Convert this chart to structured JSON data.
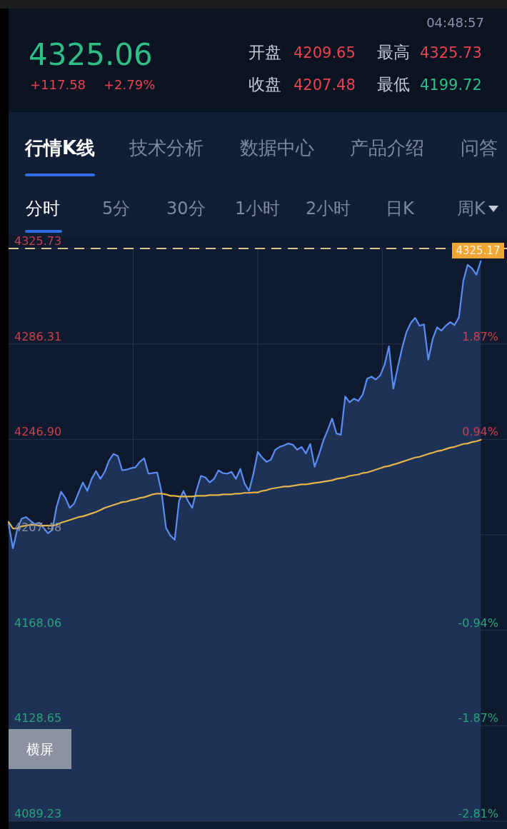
{
  "chart_data": {
    "type": "area",
    "title": "4325.06",
    "annotations": [
      "04:48:57",
      "+117.58",
      "+2.79%",
      "开盘",
      "4209.65",
      "最高",
      "4325.73",
      "收盘",
      "4207.48",
      "最低",
      "4199.72",
      "行情K线",
      "技术分析",
      "数据中心",
      "产品介绍",
      "问答",
      "分时",
      "5分",
      "30分",
      "1小时",
      "2小时",
      "日K",
      "周K",
      "横屏",
      "4325.17"
    ],
    "categories": [
      null,
      null,
      null,
      null,
      null,
      null,
      null,
      null,
      null,
      null,
      null,
      null,
      null,
      null,
      null,
      null,
      null,
      null,
      null,
      null,
      null,
      null,
      null,
      null,
      null,
      null,
      null,
      null,
      null,
      null,
      null,
      null,
      null,
      null,
      null,
      null,
      null,
      null,
      null,
      null,
      null,
      null,
      null,
      null,
      null,
      null,
      null,
      null,
      null,
      null,
      null,
      null,
      null,
      null,
      null,
      null,
      null,
      null,
      null,
      null,
      null,
      null,
      null,
      null,
      null,
      null,
      null,
      null,
      null,
      null,
      null,
      null,
      null,
      null,
      null,
      null,
      null,
      null,
      null,
      null,
      null,
      null,
      null,
      null,
      null,
      null,
      null,
      null,
      null,
      null,
      null,
      null,
      null,
      null,
      null,
      null,
      null,
      null,
      null,
      null,
      null,
      null,
      null,
      null,
      null,
      null,
      null,
      null,
      null,
      null,
      null,
      null,
      null,
      null,
      null
    ],
    "series": [
      {
        "type": "area",
        "color": "#5b8ef5",
        "values": [
          4212.2,
          4201.9,
          4209.8,
          4214.2,
          4214.8,
          4213.3,
          4211.9,
          4212.5,
          4210.4,
          4208.1,
          4209.5,
          4219.2,
          4225.3,
          4222.7,
          4218.6,
          4220.4,
          4224.8,
          4229.1,
          4225.6,
          4230.6,
          4233.8,
          4230.6,
          4233.5,
          4238.2,
          4240.9,
          4240.0,
          4234.1,
          4234.4,
          4235.0,
          4235.3,
          4237.6,
          4239.1,
          4232.7,
          4233.0,
          4233.2,
          4225.0,
          4210.4,
          4207.2,
          4205.4,
          4221.5,
          4225.6,
          4221.5,
          4218.6,
          4225.9,
          4231.8,
          4231.2,
          4229.1,
          4230.6,
          4234.1,
          4233.0,
          4232.7,
          4233.5,
          4230.6,
          4234.7,
          4228.6,
          4225.6,
          4232.7,
          4241.7,
          4239.4,
          4237.6,
          4238.5,
          4242.6,
          4243.8,
          4244.4,
          4245.2,
          4244.7,
          4242.6,
          4243.8,
          4241.1,
          4245.0,
          4235.6,
          4240.6,
          4246.4,
          4250.8,
          4255.5,
          4249.3,
          4248.8,
          4264.6,
          4262.2,
          4263.7,
          4262.8,
          4265.4,
          4271.9,
          4272.8,
          4271.6,
          4273.3,
          4277.7,
          4285.3,
          4267.8,
          4276.6,
          4284.5,
          4291.2,
          4295.0,
          4297.1,
          4293.8,
          4294.4,
          4279.8,
          4288.3,
          4293.2,
          4291.8,
          4293.8,
          4295.3,
          4294.1,
          4297.3,
          4312.3,
          4319.0,
          4317.5,
          4314.9,
          4320.5,
          null,
          null,
          null,
          null,
          null,
          null
        ]
      },
      {
        "type": "line",
        "color": "#e3b54a",
        "values": [
          4212.8,
          4210.1,
          4210.1,
          4211.0,
          4211.3,
          4211.6,
          4211.6,
          4211.3,
          4211.3,
          4211.3,
          4211.3,
          4211.6,
          4212.5,
          4213.0,
          4213.6,
          4214.2,
          4214.8,
          4215.1,
          4215.7,
          4216.3,
          4216.9,
          4217.7,
          4218.6,
          4219.2,
          4219.8,
          4220.4,
          4221.0,
          4221.2,
          4221.8,
          4222.1,
          4222.7,
          4223.0,
          4223.6,
          4224.2,
          4224.5,
          4224.5,
          4224.2,
          4223.6,
          4223.6,
          4223.3,
          4223.3,
          4223.3,
          4223.3,
          4223.6,
          4223.6,
          4223.6,
          4223.9,
          4223.9,
          4223.9,
          4224.2,
          4224.2,
          4224.2,
          4224.5,
          4224.5,
          4224.8,
          4224.8,
          4225.0,
          4225.0,
          4225.6,
          4225.9,
          4226.5,
          4226.8,
          4227.1,
          4227.4,
          4227.4,
          4227.7,
          4228.0,
          4228.3,
          4228.3,
          4228.6,
          4228.9,
          4229.1,
          4229.4,
          4229.7,
          4230.0,
          4230.6,
          4230.9,
          4231.2,
          4231.8,
          4232.1,
          4232.4,
          4233.0,
          4233.2,
          4233.8,
          4234.4,
          4235.0,
          4235.6,
          4235.9,
          4236.5,
          4237.0,
          4237.6,
          4238.2,
          4238.8,
          4239.4,
          4239.7,
          4240.3,
          4240.9,
          4241.4,
          4242.0,
          4242.3,
          4242.9,
          4243.5,
          4243.8,
          4244.4,
          4245.0,
          4245.2,
          4245.8,
          4246.1,
          4246.7,
          null,
          null,
          null,
          null,
          null,
          null
        ]
      }
    ],
    "ylim": [
      4089.23,
      4325.73
    ],
    "yticks": [
      4325.73,
      4286.31,
      {
        "value": 4246.9,
        "label": "4246.90"
      },
      4207.48,
      4168.06,
      4128.65,
      4089.23
    ],
    "y2lim": [
      -2.81,
      2.81
    ],
    "y2ticks": [
      {
        "value": 1.87,
        "label": "1.87%"
      },
      {
        "value": 0.94,
        "label": "0.94%"
      },
      {
        "value": -0.94,
        "label": "-0.94%"
      },
      {
        "value": -1.87,
        "label": "-1.87%"
      },
      {
        "value": -2.81,
        "label": "-2.81%"
      }
    ],
    "ref_lines": [
      {
        "axis": "y",
        "value": 4325.73,
        "color": "#d6c594",
        "line_style": "dashed"
      }
    ],
    "grid": true
  }
}
